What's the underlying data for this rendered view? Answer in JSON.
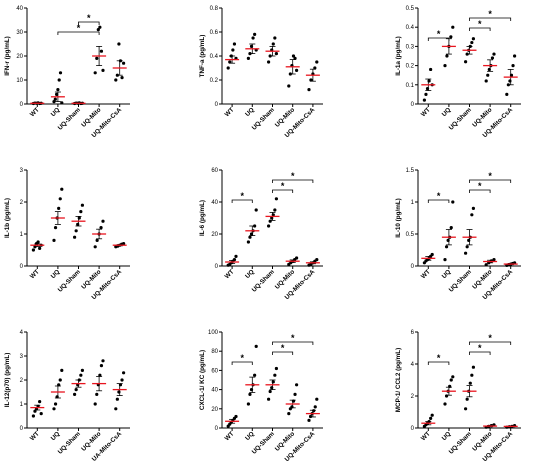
{
  "chart_data": [
    {
      "type": "scatter",
      "ylabel": "IFN-r (pg/mL)",
      "ylim": [
        0,
        40
      ],
      "yticks": [
        0,
        10,
        20,
        30,
        40
      ],
      "categories": [
        "WT",
        "UQ",
        "UQ-Sham",
        "UQ-Mito",
        "UQ-Mito-CsA"
      ],
      "points": [
        [
          0.2,
          0.4,
          0.3,
          0.5,
          0.2,
          0.3
        ],
        [
          1,
          2,
          4,
          6,
          10,
          13,
          0.5
        ],
        [
          0.2,
          0.4,
          0.3,
          0.5,
          0.2,
          0.3
        ],
        [
          13,
          19,
          31,
          32,
          22,
          14
        ],
        [
          10,
          12,
          25,
          18,
          11,
          17
        ]
      ],
      "mean": [
        0.3,
        3,
        0.3,
        20,
        15
      ],
      "sem": [
        0.1,
        2,
        0.1,
        4,
        3
      ],
      "significance": [
        {
          "from": 3,
          "to": 1,
          "label": "*"
        },
        {
          "from": 3,
          "to": 2,
          "label": "*"
        }
      ]
    },
    {
      "type": "scatter",
      "ylabel": "TNF-a (pg/mL)",
      "ylim": [
        0,
        0.8
      ],
      "yticks": [
        0,
        0.2,
        0.4,
        0.6,
        0.8
      ],
      "categories": [
        "WT",
        "UQ",
        "UQ-Sham",
        "UQ-Mito",
        "UQ-Mito-CsA"
      ],
      "points": [
        [
          0.3,
          0.35,
          0.4,
          0.45,
          0.5,
          0.38
        ],
        [
          0.38,
          0.42,
          0.48,
          0.55,
          0.58,
          0.45
        ],
        [
          0.35,
          0.4,
          0.45,
          0.5,
          0.55,
          0.42
        ],
        [
          0.15,
          0.25,
          0.32,
          0.4,
          0.38,
          0.28
        ],
        [
          0.12,
          0.2,
          0.25,
          0.3,
          0.35
        ]
      ],
      "mean": [
        0.37,
        0.46,
        0.44,
        0.31,
        0.24
      ],
      "sem": [
        0.03,
        0.04,
        0.04,
        0.06,
        0.05
      ],
      "significance": []
    },
    {
      "type": "scatter",
      "ylabel": "IL-1a (pg/mL)",
      "ylim": [
        0,
        0.5
      ],
      "yticks": [
        0,
        0.1,
        0.2,
        0.3,
        0.4,
        0.5
      ],
      "categories": [
        "WT",
        "UQ",
        "UQ-Sham",
        "UQ-Mito",
        "UQ-Mito-CsA"
      ],
      "points": [
        [
          0.02,
          0.05,
          0.08,
          0.12,
          0.18,
          0.1
        ],
        [
          0.2,
          0.25,
          0.3,
          0.35,
          0.4
        ],
        [
          0.22,
          0.26,
          0.28,
          0.3,
          0.32,
          0.34
        ],
        [
          0.12,
          0.15,
          0.18,
          0.2,
          0.24,
          0.26
        ],
        [
          0.05,
          0.1,
          0.12,
          0.15,
          0.2,
          0.25
        ]
      ],
      "mean": [
        0.1,
        0.3,
        0.28,
        0.2,
        0.14
      ],
      "sem": [
        0.03,
        0.04,
        0.02,
        0.03,
        0.04
      ],
      "significance": [
        {
          "from": 0,
          "to": 1,
          "label": "*"
        },
        {
          "from": 2,
          "to": 3,
          "label": "*"
        },
        {
          "from": 2,
          "to": 4,
          "label": "*"
        }
      ]
    },
    {
      "type": "scatter",
      "ylabel": "IL-1b (pg/mL)",
      "ylim": [
        0,
        3
      ],
      "yticks": [
        0,
        1,
        2,
        3
      ],
      "categories": [
        "WT",
        "UQ",
        "UQ-Sham",
        "UQ-Mito",
        "UQ-Mito-CsA"
      ],
      "points": [
        [
          0.5,
          0.6,
          0.7,
          0.75,
          0.55,
          0.65
        ],
        [
          0.8,
          1.2,
          1.5,
          1.8,
          2.1,
          2.4
        ],
        [
          0.9,
          1.1,
          1.3,
          1.5,
          1.7,
          1.9
        ],
        [
          0.6,
          0.8,
          1.0,
          1.2,
          1.4
        ],
        [
          0.6,
          0.62,
          0.65,
          0.68,
          0.7
        ]
      ],
      "mean": [
        0.65,
        1.5,
        1.4,
        1.0,
        0.65
      ],
      "sem": [
        0.04,
        0.2,
        0.15,
        0.15,
        0.02
      ],
      "significance": []
    },
    {
      "type": "scatter",
      "ylabel": "IL-6 (pg/mL)",
      "ylim": [
        0,
        60
      ],
      "yticks": [
        0,
        20,
        40,
        60
      ],
      "categories": [
        "WT",
        "UQ",
        "UQ-Sham",
        "UQ-Mito",
        "UQ-Mito-CsA"
      ],
      "points": [
        [
          0.5,
          1,
          2,
          3,
          4,
          6
        ],
        [
          15,
          18,
          20,
          22,
          25,
          35
        ],
        [
          25,
          28,
          30,
          32,
          35,
          42
        ],
        [
          1,
          2,
          3,
          4,
          5
        ],
        [
          0.5,
          1,
          2,
          3,
          4
        ]
      ],
      "mean": [
        2.5,
        22,
        31,
        3,
        2
      ],
      "sem": [
        1,
        3,
        2.5,
        0.8,
        0.6
      ],
      "significance": [
        {
          "from": 0,
          "to": 1,
          "label": "*"
        },
        {
          "from": 2,
          "to": 3,
          "label": "*"
        },
        {
          "from": 2,
          "to": 4,
          "label": "*"
        }
      ]
    },
    {
      "type": "scatter",
      "ylabel": "IL-10 (pg/mL)",
      "ylim": [
        0,
        1.5
      ],
      "yticks": [
        0,
        0.5,
        1.0,
        1.5
      ],
      "categories": [
        "WT",
        "UQ",
        "UQ-Sham",
        "UQ-Mito",
        "UQ-Mito-CsA"
      ],
      "points": [
        [
          0.05,
          0.08,
          0.1,
          0.12,
          0.15,
          0.18
        ],
        [
          0.1,
          0.3,
          0.4,
          0.45,
          0.6,
          1.0
        ],
        [
          0.2,
          0.3,
          0.4,
          0.45,
          0.8,
          0.9
        ],
        [
          0.02,
          0.05,
          0.08,
          0.1
        ],
        [
          0.01,
          0.02,
          0.03,
          0.04,
          0.05
        ]
      ],
      "mean": [
        0.12,
        0.45,
        0.45,
        0.07,
        0.03
      ],
      "sem": [
        0.03,
        0.12,
        0.12,
        0.02,
        0.01
      ],
      "significance": [
        {
          "from": 0,
          "to": 1,
          "label": "*"
        },
        {
          "from": 2,
          "to": 3,
          "label": "*"
        },
        {
          "from": 2,
          "to": 4,
          "label": "*"
        }
      ]
    },
    {
      "type": "scatter",
      "ylabel": "IL-12(p70) (pg/mL)",
      "ylim": [
        0,
        4
      ],
      "yticks": [
        0,
        1,
        2,
        3,
        4
      ],
      "categories": [
        "WT",
        "UQ",
        "UQ-Sham",
        "UQ-Mito",
        "UA-Mito-CsA"
      ],
      "points": [
        [
          0.5,
          0.7,
          0.8,
          0.9,
          1.1,
          0.6
        ],
        [
          0.8,
          1.0,
          1.3,
          1.8,
          2.0,
          2.4
        ],
        [
          1.4,
          1.6,
          1.8,
          2.0,
          2.2,
          2.4
        ],
        [
          1.0,
          1.4,
          1.8,
          2.2,
          2.6,
          2.8
        ],
        [
          0.8,
          1.2,
          1.5,
          1.8,
          2.0,
          2.3
        ]
      ],
      "mean": [
        0.85,
        1.5,
        1.85,
        1.85,
        1.6
      ],
      "sem": [
        0.1,
        0.25,
        0.15,
        0.3,
        0.25
      ],
      "significance": []
    },
    {
      "type": "scatter",
      "ylabel": "CXCL-1/ KC (pg/mL)",
      "ylim": [
        0,
        100
      ],
      "yticks": [
        0,
        20,
        40,
        60,
        80,
        100
      ],
      "categories": [
        "WT",
        "UQ",
        "UQ-Sham",
        "UQ-Mito",
        "UQ-Mito-CsA"
      ],
      "points": [
        [
          2,
          4,
          6,
          8,
          10,
          12
        ],
        [
          25,
          35,
          40,
          45,
          55,
          85
        ],
        [
          30,
          38,
          42,
          48,
          55,
          62
        ],
        [
          15,
          20,
          22,
          28,
          35,
          45
        ],
        [
          8,
          12,
          15,
          18,
          22,
          30
        ]
      ],
      "mean": [
        7,
        45,
        45,
        25,
        15
      ],
      "sem": [
        2,
        8,
        5,
        4,
        3.5
      ],
      "significance": [
        {
          "from": 0,
          "to": 1,
          "label": "*"
        },
        {
          "from": 2,
          "to": 3,
          "label": "*"
        },
        {
          "from": 2,
          "to": 4,
          "label": "*"
        }
      ]
    },
    {
      "type": "scatter",
      "ylabel": "MCP-1/ CCL2 (pg/mL)",
      "ylim": [
        0,
        6
      ],
      "yticks": [
        0,
        2,
        4,
        6
      ],
      "categories": [
        "WT",
        "UQ",
        "UQ-Sham",
        "UQ-Mito",
        "UQ-Mito-CsA"
      ],
      "points": [
        [
          0.1,
          0.2,
          0.3,
          0.4,
          0.6,
          0.8
        ],
        [
          1.5,
          2.0,
          2.3,
          2.6,
          3.0,
          3.2
        ],
        [
          1.2,
          1.8,
          2.3,
          2.8,
          3.3,
          3.8
        ],
        [
          0.05,
          0.1,
          0.15,
          0.2
        ],
        [
          0.05,
          0.08,
          0.1,
          0.15
        ]
      ],
      "mean": [
        0.3,
        2.3,
        2.3,
        0.12,
        0.1
      ],
      "sem": [
        0.1,
        0.25,
        0.35,
        0.04,
        0.03
      ],
      "significance": [
        {
          "from": 0,
          "to": 1,
          "label": "*"
        },
        {
          "from": 2,
          "to": 3,
          "label": "*"
        },
        {
          "from": 2,
          "to": 4,
          "label": "*"
        }
      ]
    }
  ]
}
